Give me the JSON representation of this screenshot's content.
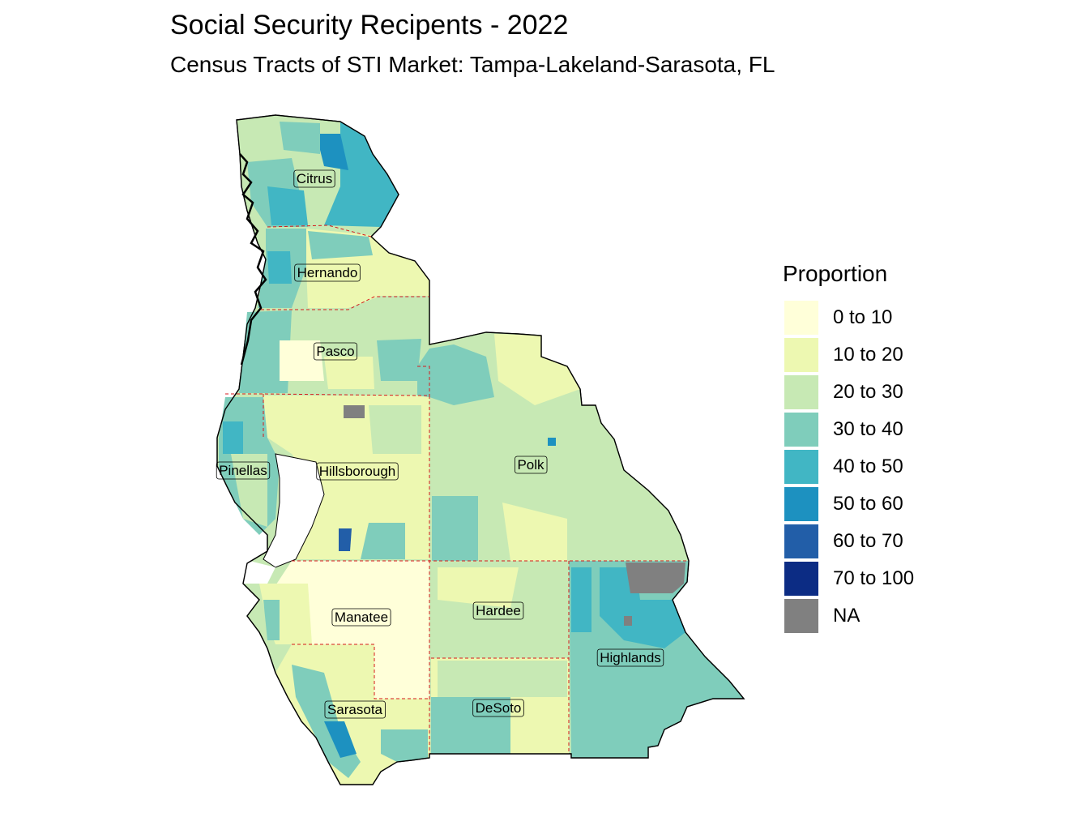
{
  "title": "Social Security Recipents - 2022",
  "subtitle": "Census Tracts of STI Market: Tampa-Lakeland-Sarasota, FL",
  "legend": {
    "title": "Proportion",
    "items": [
      {
        "label": "0 to 10",
        "color": "#ffffd9"
      },
      {
        "label": "10 to 20",
        "color": "#edf8b1"
      },
      {
        "label": "20 to 30",
        "color": "#c7e9b4"
      },
      {
        "label": "30 to 40",
        "color": "#7fcdbb"
      },
      {
        "label": "40 to 50",
        "color": "#41b6c4"
      },
      {
        "label": "50 to 60",
        "color": "#1d91c0"
      },
      {
        "label": "60 to 70",
        "color": "#225ea8"
      },
      {
        "label": "70 to 100",
        "color": "#0c2c84"
      },
      {
        "label": "NA",
        "color": "#808080"
      }
    ]
  },
  "counties": [
    {
      "name": "Citrus"
    },
    {
      "name": "Hernando"
    },
    {
      "name": "Pasco"
    },
    {
      "name": "Pinellas"
    },
    {
      "name": "Hillsborough"
    },
    {
      "name": "Polk"
    },
    {
      "name": "Manatee"
    },
    {
      "name": "Hardee"
    },
    {
      "name": "Highlands"
    },
    {
      "name": "Sarasota"
    },
    {
      "name": "DeSoto"
    }
  ]
}
